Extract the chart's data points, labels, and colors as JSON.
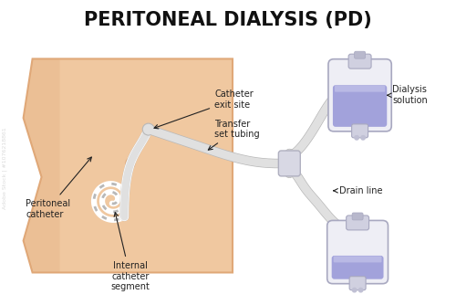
{
  "title": "PERITONEAL DIALYSIS (PD)",
  "title_fontsize": 15,
  "title_fontweight": "bold",
  "bg_color": "#ffffff",
  "skin_color": "#f0c8a0",
  "skin_shadow": "#e0a878",
  "catheter_color": "#e0e0e0",
  "catheter_edge": "#b8b8b8",
  "bag_body_color": "#eeeef5",
  "bag_liquid_top": "#c0c0e8",
  "bag_liquid_bottom": "#9898d8",
  "bag_cap_color": "#d0d0e0",
  "annotation_color": "#222222",
  "annotation_fontsize": 7,
  "watermark_color": "#cccccc",
  "labels": {
    "catheter_exit": "Catheter\nexit site",
    "transfer_set": "Transfer\nset tubing",
    "peritoneal": "Peritoneal\ncatheter",
    "internal": "Internal\ncatheter\nsegment",
    "dialysis_solution": "Dialysis\nsolution",
    "drain_line": "Drain line"
  }
}
